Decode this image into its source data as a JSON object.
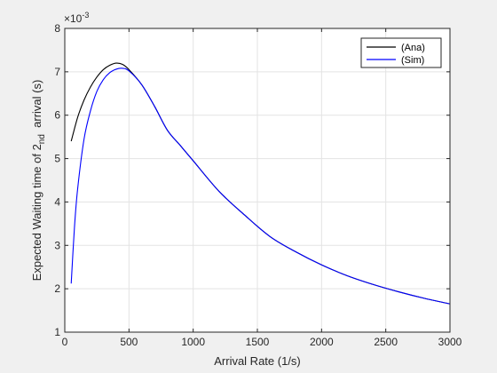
{
  "chart_data": {
    "type": "line",
    "xlabel": "Arrival Rate (1/s)",
    "ylabel": {
      "prefix": "Expected Waiting time of 2",
      "subscript": "nd",
      "suffix": "  arrival (s)"
    },
    "exponent": {
      "prefix": "×10",
      "power": "-3"
    },
    "xlim": [
      0,
      3000
    ],
    "ylim": [
      1,
      8
    ],
    "xticks": [
      0,
      500,
      1000,
      1500,
      2000,
      2500,
      3000
    ],
    "yticks": [
      1,
      2,
      3,
      4,
      5,
      6,
      7,
      8
    ],
    "grid": true,
    "legend_position": "top-right",
    "series": [
      {
        "name": "(Ana)",
        "color": "#000000",
        "x": [
          50,
          100,
          150,
          200,
          250,
          300,
          350,
          400,
          450,
          500,
          600,
          700,
          800,
          900,
          1000,
          1200,
          1400,
          1600,
          1800,
          2000,
          2200,
          2400,
          2600,
          2800,
          3000
        ],
        "y": [
          5.4,
          5.95,
          6.35,
          6.65,
          6.88,
          7.05,
          7.15,
          7.2,
          7.17,
          7.05,
          6.7,
          6.2,
          5.65,
          5.3,
          4.95,
          4.25,
          3.7,
          3.2,
          2.85,
          2.55,
          2.3,
          2.1,
          1.93,
          1.78,
          1.65
        ]
      },
      {
        "name": "(Sim)",
        "color": "#0000ff",
        "x": [
          50,
          75,
          100,
          150,
          200,
          250,
          300,
          350,
          400,
          450,
          500,
          600,
          700,
          800,
          900,
          1000,
          1200,
          1400,
          1600,
          1800,
          2000,
          2200,
          2400,
          2600,
          2800,
          3000
        ],
        "y": [
          2.12,
          3.4,
          4.3,
          5.45,
          6.1,
          6.55,
          6.82,
          6.98,
          7.06,
          7.08,
          7.02,
          6.7,
          6.2,
          5.65,
          5.3,
          4.95,
          4.25,
          3.7,
          3.2,
          2.85,
          2.55,
          2.3,
          2.1,
          1.93,
          1.78,
          1.65
        ]
      }
    ]
  }
}
